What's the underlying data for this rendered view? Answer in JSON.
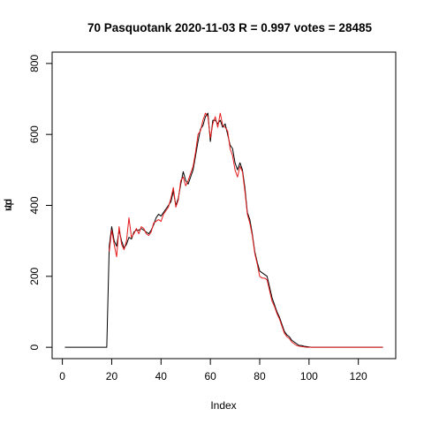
{
  "chart_data": {
    "type": "line",
    "title": "70 Pasquotank 2020-11-03 R = 0.997 votes = 28485",
    "xlabel": "Index",
    "ylabel_overlap": [
      "vp",
      "rtd"
    ],
    "xlim": [
      1,
      130
    ],
    "ylim": [
      0,
      800
    ],
    "x_ticks": [
      0,
      20,
      40,
      60,
      80,
      100,
      120
    ],
    "y_ticks": [
      0,
      200,
      400,
      600,
      800
    ],
    "grid": false,
    "legend": "none",
    "series": [
      {
        "color": "#000000",
        "values": [
          0,
          0,
          0,
          0,
          0,
          0,
          0,
          0,
          0,
          0,
          0,
          0,
          0,
          0,
          0,
          0,
          0,
          0,
          285,
          340,
          300,
          285,
          330,
          300,
          280,
          290,
          310,
          305,
          325,
          330,
          330,
          335,
          330,
          325,
          320,
          330,
          345,
          365,
          375,
          370,
          380,
          390,
          400,
          410,
          440,
          400,
          420,
          460,
          495,
          470,
          460,
          480,
          500,
          540,
          580,
          615,
          625,
          650,
          660,
          580,
          640,
          640,
          630,
          640,
          620,
          630,
          600,
          570,
          560,
          520,
          500,
          520,
          500,
          450,
          380,
          360,
          320,
          270,
          240,
          215,
          210,
          205,
          200,
          170,
          140,
          120,
          100,
          85,
          65,
          45,
          35,
          30,
          20,
          15,
          10,
          5,
          5,
          3,
          2,
          1,
          0,
          0,
          0,
          0,
          0,
          0,
          0,
          0,
          0,
          0,
          0,
          0,
          0,
          0,
          0,
          0,
          0,
          0,
          0,
          0,
          0,
          0,
          0,
          0,
          0,
          0,
          0,
          0,
          0,
          0
        ]
      },
      {
        "color": "#e41a1c",
        "values": [
          null,
          null,
          null,
          null,
          null,
          null,
          null,
          null,
          null,
          null,
          null,
          null,
          null,
          null,
          null,
          null,
          null,
          null,
          270,
          330,
          290,
          255,
          340,
          290,
          275,
          300,
          365,
          310,
          320,
          335,
          320,
          340,
          335,
          320,
          315,
          325,
          350,
          355,
          360,
          355,
          375,
          385,
          395,
          420,
          450,
          395,
          415,
          470,
          480,
          455,
          470,
          490,
          510,
          550,
          600,
          610,
          640,
          660,
          650,
          590,
          630,
          650,
          620,
          660,
          625,
          620,
          610,
          560,
          540,
          500,
          480,
          510,
          495,
          440,
          375,
          350,
          315,
          265,
          235,
          200,
          195,
          195,
          190,
          160,
          130,
          115,
          95,
          80,
          60,
          40,
          30,
          25,
          15,
          10,
          5,
          3,
          2,
          1,
          0,
          0,
          0,
          0,
          0,
          0,
          0,
          0,
          0,
          0,
          0,
          0,
          0,
          0,
          0,
          0,
          0,
          0,
          0,
          0,
          0,
          0,
          0,
          0,
          0,
          0,
          0,
          0,
          0,
          0,
          0,
          0
        ]
      }
    ]
  }
}
